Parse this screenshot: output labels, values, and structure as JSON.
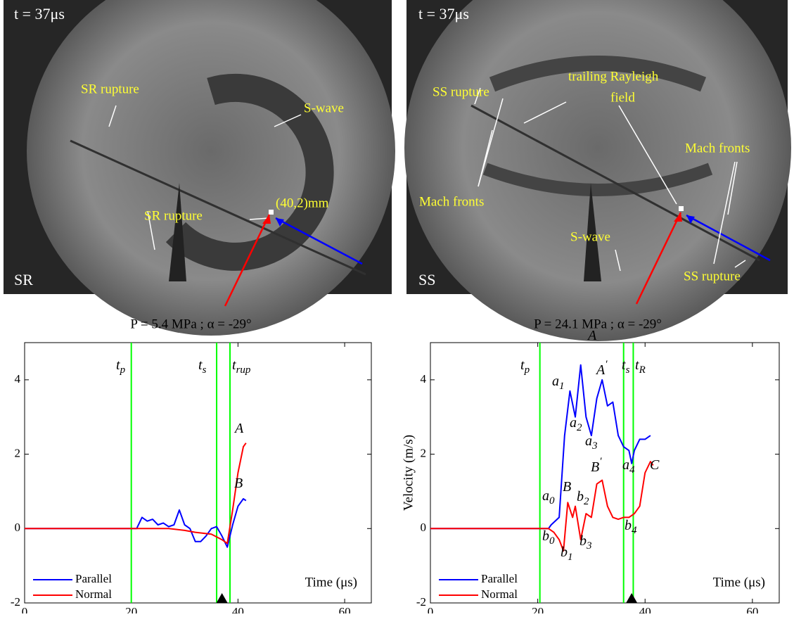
{
  "photos": [
    {
      "time": "t = 37μs",
      "label": "SR",
      "annotations": [
        "SR rupture",
        "S-wave",
        "SR rupture",
        "(40,2)mm"
      ]
    },
    {
      "time": "t = 37μs",
      "label": "SS",
      "annotations": [
        "SS rupture",
        "trailing Rayleigh",
        "field",
        "Mach fronts",
        "Mach fronts",
        "S-wave",
        "SS rupture"
      ]
    }
  ],
  "chart_data": [
    {
      "type": "line",
      "title": "P =  5.4 MPa ; α = -29°",
      "xlabel": "Time (μs)",
      "xlim": [
        0,
        65
      ],
      "ylim": [
        -2,
        5
      ],
      "xticks": [
        0,
        20,
        40,
        60
      ],
      "yticks": [
        -2,
        0,
        2,
        4
      ],
      "series": [
        {
          "name": "Parallel",
          "color": "#0000ff",
          "x": [
            0,
            21,
            22,
            23,
            24,
            25,
            26,
            27,
            28,
            29,
            30,
            31,
            32,
            33,
            34,
            35,
            36,
            37,
            38,
            39,
            40,
            41,
            41.5
          ],
          "values": [
            0,
            0,
            0.3,
            0.2,
            0.25,
            0.1,
            0.15,
            0.05,
            0.1,
            0.5,
            0.1,
            0,
            -0.35,
            -0.35,
            -0.2,
            0,
            0.05,
            -0.2,
            -0.5,
            0.1,
            0.6,
            0.8,
            0.75
          ]
        },
        {
          "name": "Normal",
          "color": "#ff0000",
          "x": [
            0,
            27,
            30,
            32,
            35,
            37,
            38,
            39,
            40,
            41,
            41.5
          ],
          "values": [
            0,
            0,
            -0.05,
            -0.1,
            -0.15,
            -0.3,
            -0.4,
            0.5,
            1.5,
            2.2,
            2.3
          ]
        }
      ],
      "event_lines": {
        "color": "#00ff00",
        "x": [
          20,
          36,
          38.5
        ]
      },
      "marker_x": 37,
      "annotations": [
        {
          "text": "t",
          "sub": "p"
        },
        {
          "text": "t",
          "sub": "s"
        },
        {
          "text": "t",
          "sub": "rup"
        },
        {
          "text": "A"
        },
        {
          "text": "B"
        }
      ]
    },
    {
      "type": "line",
      "title": "P =  24.1 MPa ; α = -29°",
      "xlabel": "Time (μs)",
      "ylabel": "Velocity (m/s)",
      "xlim": [
        0,
        65
      ],
      "ylim": [
        -2,
        5
      ],
      "xticks": [
        0,
        20,
        40,
        60
      ],
      "yticks": [
        -2,
        0,
        2,
        4
      ],
      "series": [
        {
          "name": "Parallel",
          "color": "#0000ff",
          "x": [
            0,
            22,
            22.5,
            24,
            25,
            26,
            27,
            28,
            29,
            30,
            31,
            32,
            33,
            34,
            35,
            36,
            37,
            37.5,
            38,
            39,
            40,
            41
          ],
          "values": [
            0,
            0,
            0.1,
            0.3,
            2.5,
            3.7,
            3.0,
            4.4,
            3.0,
            2.5,
            3.5,
            4.0,
            3.3,
            3.4,
            2.5,
            2.2,
            2.1,
            1.75,
            2.1,
            2.4,
            2.4,
            2.5
          ]
        },
        {
          "name": "Normal",
          "color": "#ff0000",
          "x": [
            0,
            22,
            23,
            24,
            24.8,
            25.6,
            26.5,
            27,
            28,
            29,
            30,
            31,
            32,
            33,
            34,
            35,
            36,
            37,
            38,
            39,
            40,
            41,
            41.5
          ],
          "values": [
            0,
            0,
            -0.1,
            -0.3,
            -0.6,
            0.7,
            0.3,
            0.6,
            -0.3,
            0.4,
            0.3,
            1.2,
            1.3,
            0.6,
            0.3,
            0.25,
            0.3,
            0.3,
            0.4,
            0.6,
            1.5,
            1.8,
            1.7
          ]
        }
      ],
      "event_lines": {
        "color": "#00ff00",
        "x": [
          20.4,
          36,
          37.8
        ]
      },
      "marker_x": 37.5,
      "annotations": [
        {
          "text": "t",
          "sub": "p"
        },
        {
          "text": "t",
          "sub": "s"
        },
        {
          "text": "t",
          "sub": "R"
        },
        {
          "text": "A"
        },
        {
          "text": "A",
          "sup": "′"
        },
        {
          "text": "a",
          "sub": "1"
        },
        {
          "text": "a",
          "sub": "2"
        },
        {
          "text": "a",
          "sub": "3"
        },
        {
          "text": "a",
          "sub": "4"
        },
        {
          "text": "C"
        },
        {
          "text": "B",
          "sup": "′"
        },
        {
          "text": "B"
        },
        {
          "text": "b",
          "sub": "2"
        },
        {
          "text": "a",
          "sub": "0"
        },
        {
          "text": "b",
          "sub": "0"
        },
        {
          "text": "b",
          "sub": "1"
        },
        {
          "text": "b",
          "sub": "3"
        },
        {
          "text": "b",
          "sub": "4"
        }
      ]
    }
  ]
}
